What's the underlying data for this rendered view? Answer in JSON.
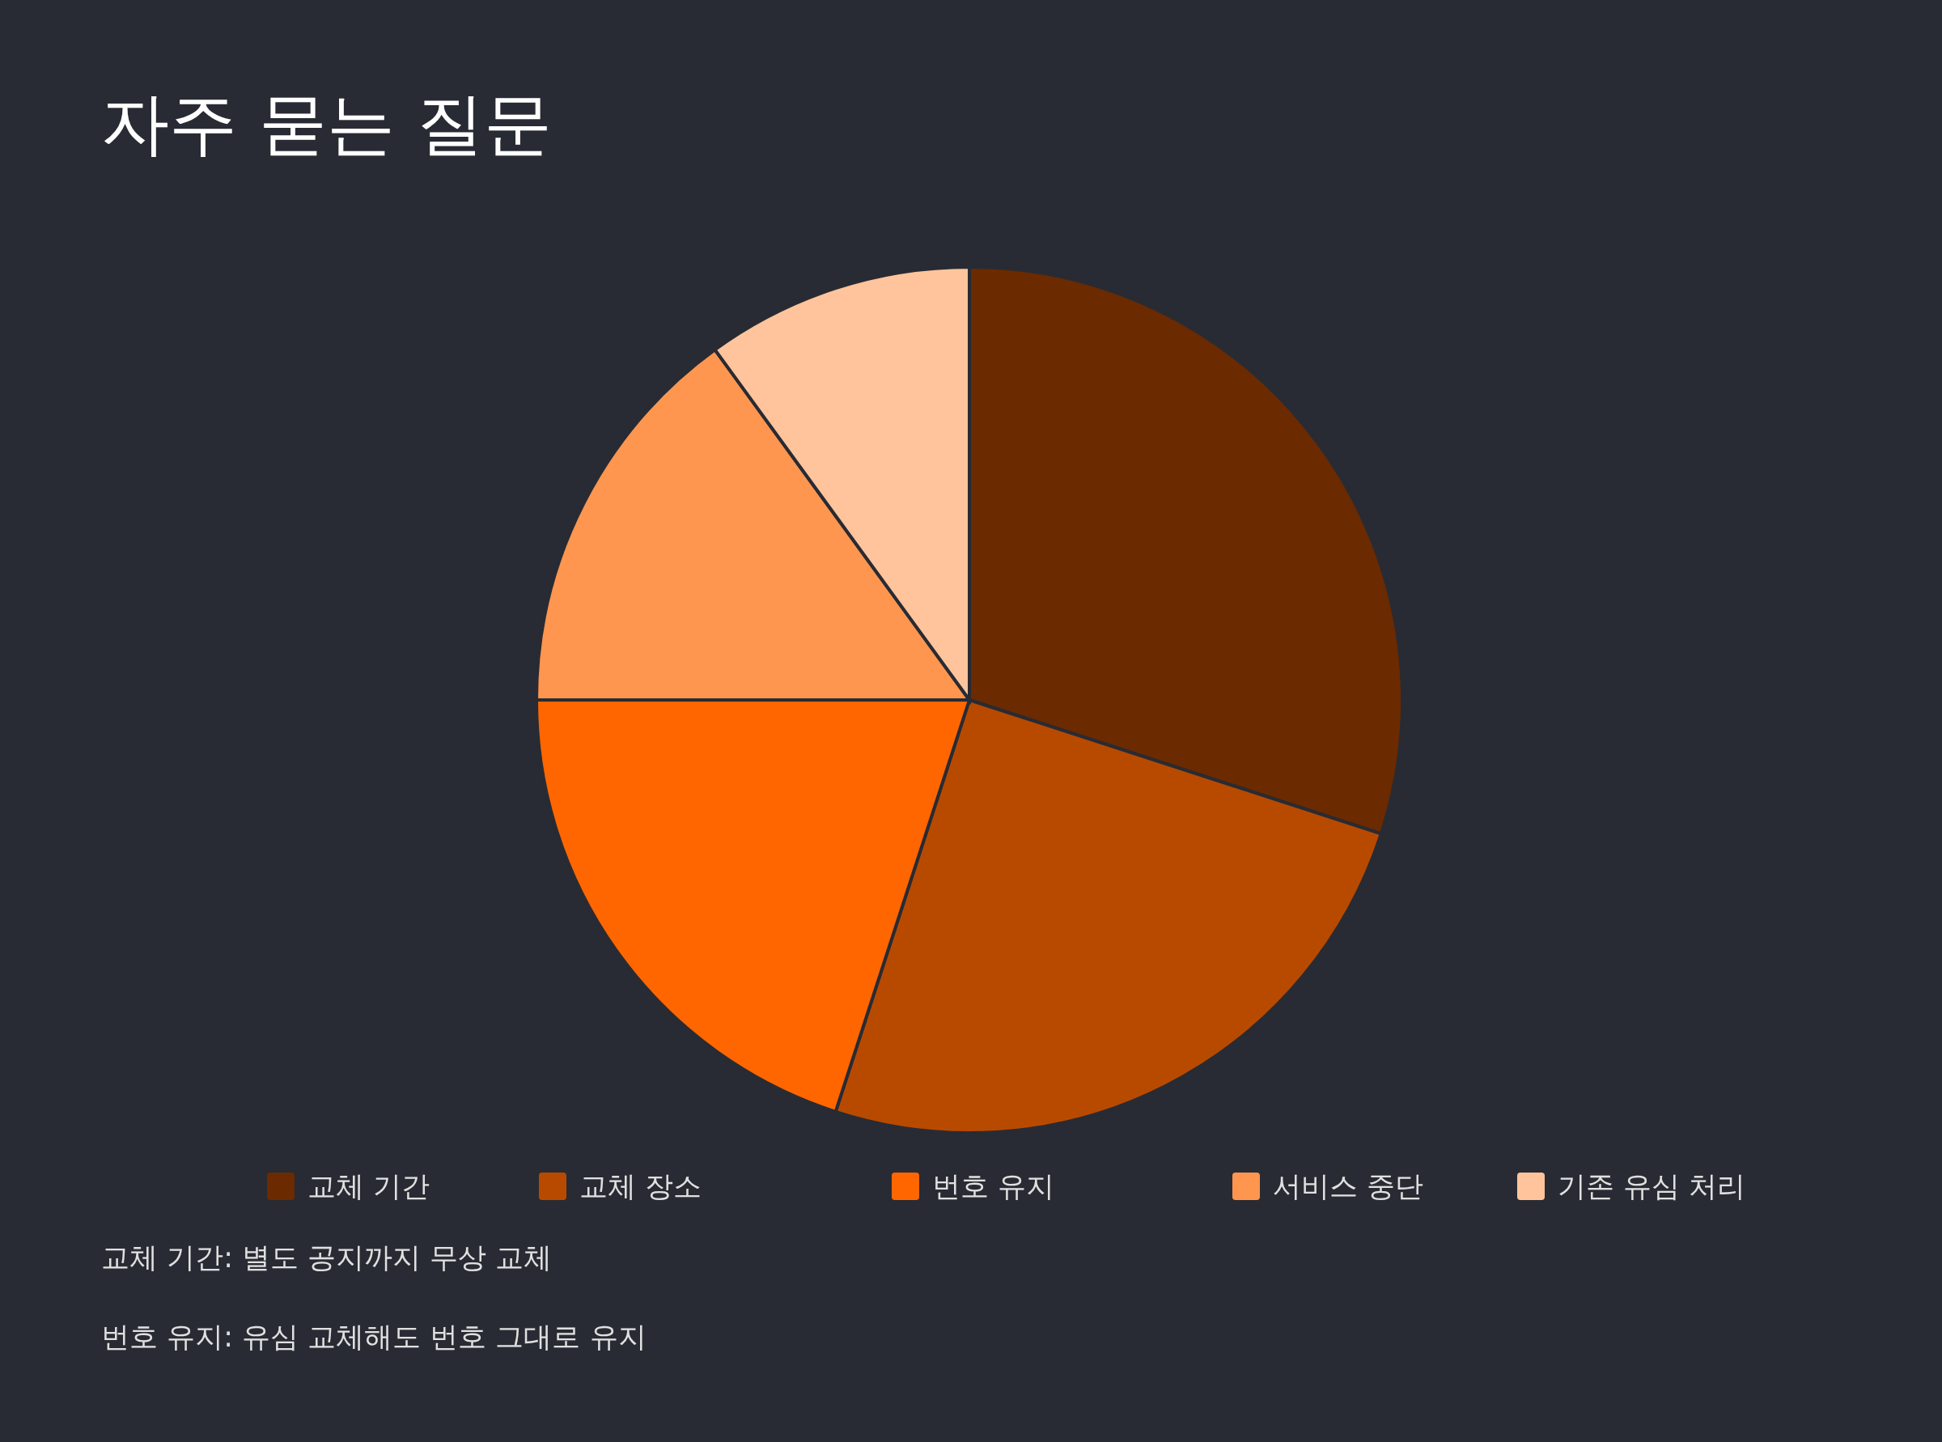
{
  "chart_data": {
    "type": "pie",
    "title": "자주 묻는 질문",
    "categories": [
      "교체 기간",
      "교체 장소",
      "번호 유지",
      "서비스 중단",
      "기존 유심 처리"
    ],
    "values": [
      30,
      25,
      20,
      15,
      10
    ],
    "colors": [
      "#6b2a00",
      "#b84a00",
      "#ff6600",
      "#ff964f",
      "#ffc49b"
    ],
    "legend": "bottom",
    "annotations": [
      "교체 기간: 별도 공지까지 무상 교체",
      "번호 유지: 유심 교체해도 번호 그대로 유지"
    ]
  }
}
